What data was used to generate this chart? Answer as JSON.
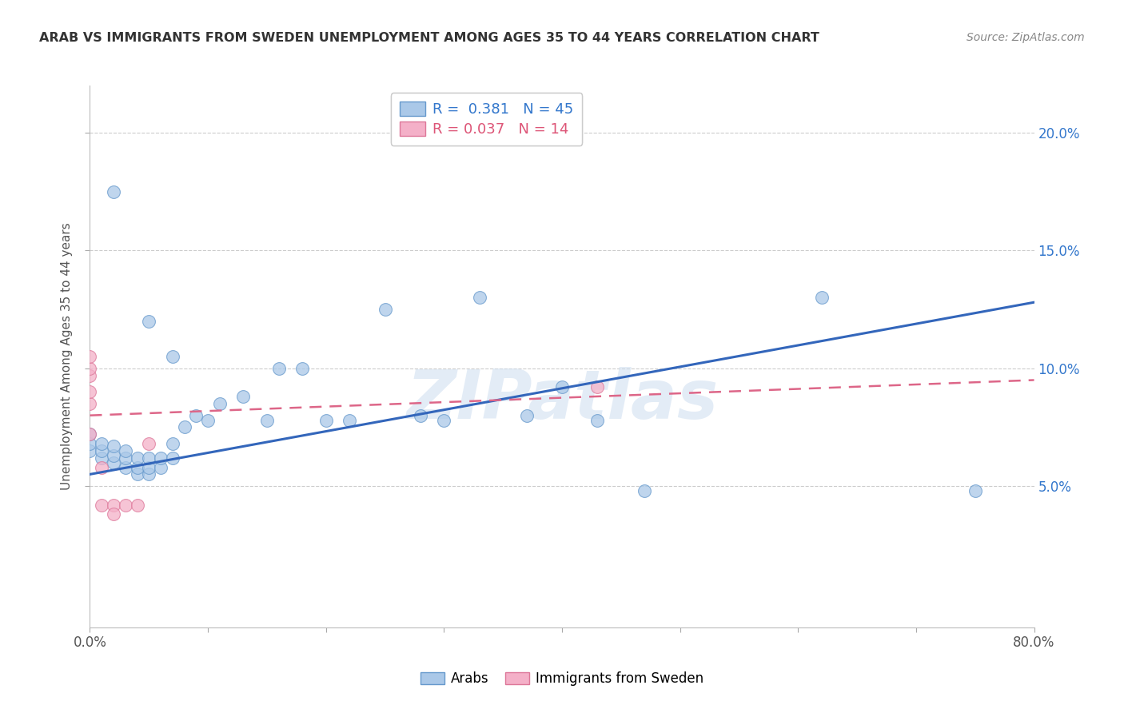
{
  "title": "ARAB VS IMMIGRANTS FROM SWEDEN UNEMPLOYMENT AMONG AGES 35 TO 44 YEARS CORRELATION CHART",
  "source": "Source: ZipAtlas.com",
  "ylabel": "Unemployment Among Ages 35 to 44 years",
  "xlim": [
    0.0,
    0.8
  ],
  "ylim": [
    -0.01,
    0.22
  ],
  "watermark": "ZIPatlas",
  "legend_arab_R": "R =  0.381",
  "legend_arab_N": "N = 45",
  "legend_sweden_R": "R = 0.037",
  "legend_sweden_N": "N = 14",
  "arab_color": "#aac8e8",
  "arab_edge_color": "#6699cc",
  "sweden_color": "#f4b0c8",
  "sweden_edge_color": "#dd7799",
  "trendline_arab_color": "#3366bb",
  "trendline_sweden_color": "#dd6688",
  "grid_color": "#cccccc",
  "background_color": "#ffffff",
  "arab_R_color": "#3377cc",
  "sweden_R_color": "#dd5577",
  "right_axis_color": "#3377cc",
  "arab_points_x": [
    0.02,
    0.05,
    0.07,
    0.0,
    0.0,
    0.0,
    0.01,
    0.01,
    0.01,
    0.02,
    0.02,
    0.02,
    0.03,
    0.03,
    0.03,
    0.04,
    0.04,
    0.04,
    0.05,
    0.05,
    0.05,
    0.06,
    0.06,
    0.07,
    0.07,
    0.08,
    0.09,
    0.1,
    0.11,
    0.13,
    0.15,
    0.16,
    0.18,
    0.2,
    0.22,
    0.25,
    0.28,
    0.3,
    0.33,
    0.37,
    0.4,
    0.43,
    0.47,
    0.62,
    0.75
  ],
  "arab_points_y": [
    0.175,
    0.12,
    0.105,
    0.065,
    0.068,
    0.072,
    0.062,
    0.065,
    0.068,
    0.06,
    0.063,
    0.067,
    0.058,
    0.062,
    0.065,
    0.055,
    0.058,
    0.062,
    0.055,
    0.058,
    0.062,
    0.058,
    0.062,
    0.062,
    0.068,
    0.075,
    0.08,
    0.078,
    0.085,
    0.088,
    0.078,
    0.1,
    0.1,
    0.078,
    0.078,
    0.125,
    0.08,
    0.078,
    0.13,
    0.08,
    0.092,
    0.078,
    0.048,
    0.13,
    0.048
  ],
  "sweden_points_x": [
    0.0,
    0.0,
    0.0,
    0.0,
    0.0,
    0.0,
    0.01,
    0.01,
    0.02,
    0.02,
    0.03,
    0.04,
    0.05,
    0.43
  ],
  "sweden_points_y": [
    0.072,
    0.085,
    0.09,
    0.097,
    0.1,
    0.105,
    0.058,
    0.042,
    0.042,
    0.038,
    0.042,
    0.042,
    0.068,
    0.092
  ],
  "arab_trendline_x": [
    0.0,
    0.8
  ],
  "arab_trendline_y": [
    0.055,
    0.128
  ],
  "sweden_trendline_x": [
    0.0,
    0.8
  ],
  "sweden_trendline_y": [
    0.08,
    0.095
  ],
  "xtick_positions": [
    0.0,
    0.1,
    0.2,
    0.3,
    0.4,
    0.5,
    0.6,
    0.7,
    0.8
  ],
  "ytick_positions": [
    0.05,
    0.1,
    0.15,
    0.2
  ],
  "ytick_right_labels": [
    "5.0%",
    "10.0%",
    "15.0%",
    "20.0%"
  ]
}
